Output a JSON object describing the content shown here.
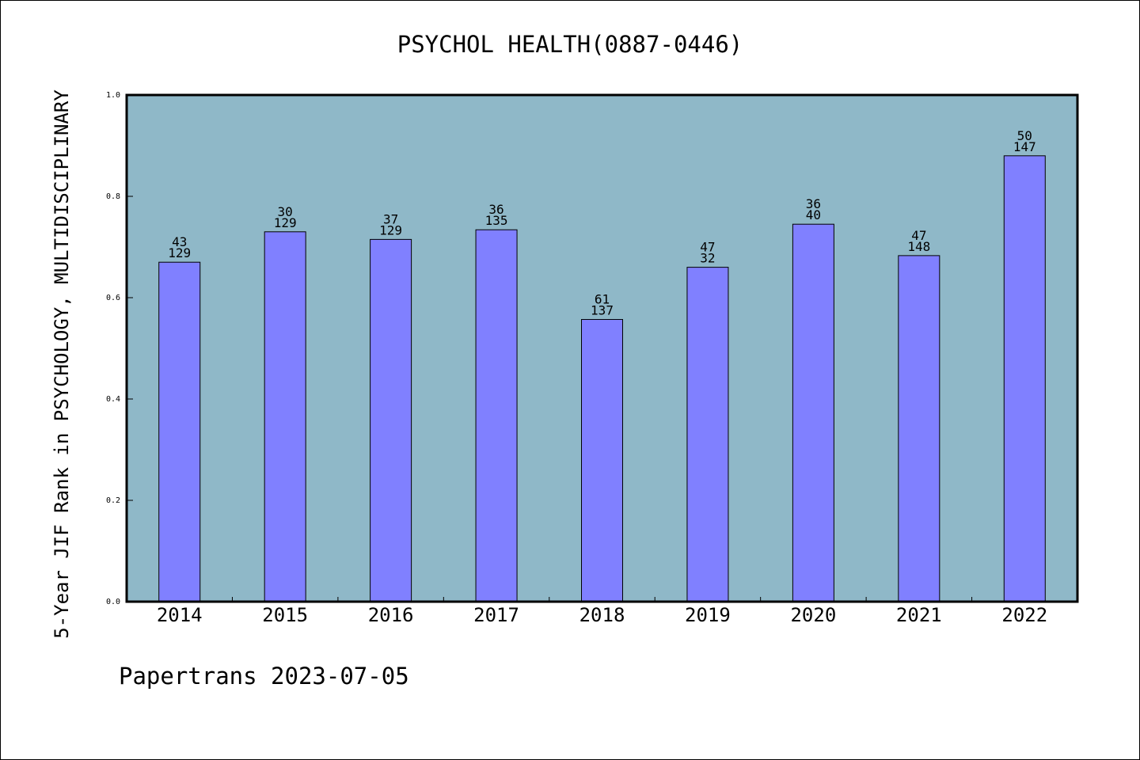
{
  "chart_data": {
    "type": "bar",
    "title": "PSYCHOL HEALTH(0887-0446)",
    "ylabel": "5-Year JIF Rank in PSYCHOLOGY, MULTIDISCIPLINARY",
    "xlabel": "",
    "ylim": [
      0.0,
      1.0
    ],
    "yticks": [
      "0.0",
      "0.2",
      "0.4",
      "0.6",
      "0.8",
      "1.0"
    ],
    "grid": false,
    "categories": [
      "2014",
      "2015",
      "2016",
      "2017",
      "2018",
      "2019",
      "2020",
      "2021",
      "2022"
    ],
    "values": [
      0.67,
      0.73,
      0.715,
      0.734,
      0.557,
      0.66,
      0.745,
      0.683,
      0.88
    ],
    "ranks": [
      "43",
      "30",
      "37",
      "36",
      "61",
      "47",
      "36",
      "47",
      "50"
    ],
    "totals": [
      "129",
      "129",
      "129",
      "135",
      "137",
      "32",
      "40",
      "148",
      "147"
    ],
    "colors": {
      "plot_background": "#8fb8c8",
      "bar_fill": "#8080ff",
      "bar_stroke": "#000000"
    }
  },
  "footer": {
    "text": "Papertrans 2023-07-05"
  }
}
